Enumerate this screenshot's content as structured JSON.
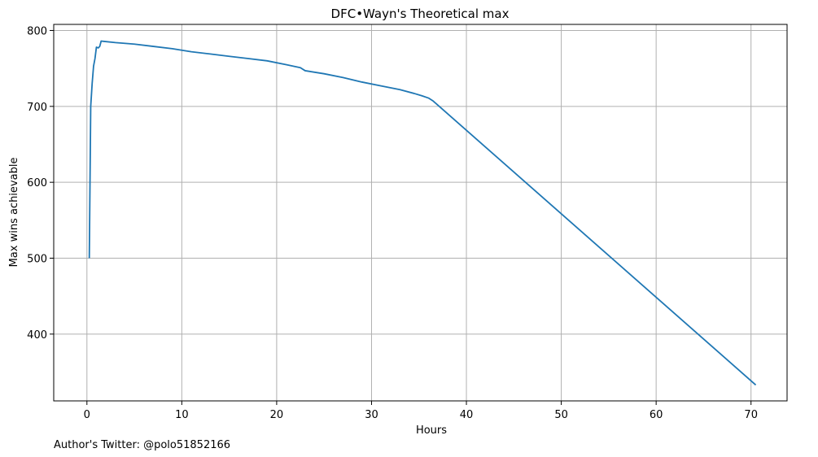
{
  "chart_data": {
    "type": "line",
    "title": "DFC•Wayn's Theoretical max",
    "xlabel": "Hours",
    "ylabel": "Max wins achievable",
    "xlim": [
      -3.5,
      73.8
    ],
    "ylim": [
      312,
      808
    ],
    "xticks": [
      0,
      10,
      20,
      30,
      40,
      50,
      60,
      70
    ],
    "yticks": [
      400,
      500,
      600,
      700,
      800
    ],
    "grid": true,
    "line_color": "#1f77b4",
    "series": [
      {
        "x": [
          0.25,
          0.4,
          0.55,
          0.7,
          0.85,
          1.0,
          1.2,
          1.35,
          1.5,
          3,
          5,
          7,
          9,
          11,
          13,
          15,
          17,
          19,
          21,
          22.5,
          23,
          25,
          27,
          29,
          31,
          33,
          34.5,
          35.3,
          36,
          36.5,
          70.5
        ],
        "y": [
          500,
          700,
          730,
          753,
          763,
          778,
          777,
          779,
          786,
          784,
          782,
          779,
          776,
          772,
          769,
          766,
          763,
          760,
          755,
          751,
          747,
          743,
          738,
          732,
          727,
          722,
          717,
          714,
          711,
          707,
          333
        ]
      }
    ]
  },
  "footer": {
    "credit": "Author's Twitter: @polo51852166"
  }
}
